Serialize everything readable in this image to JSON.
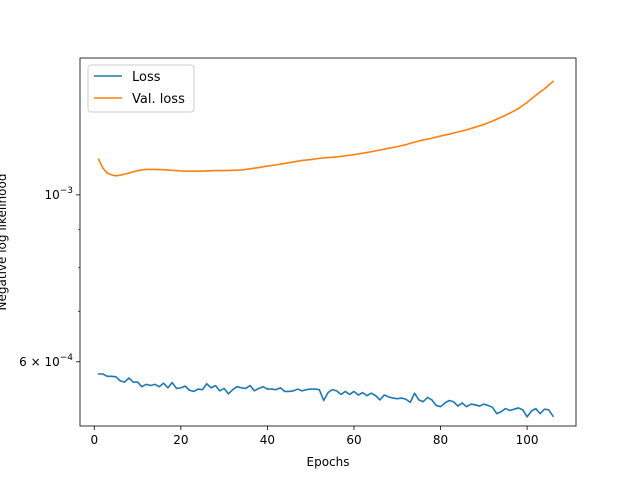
{
  "chart_data": {
    "type": "line",
    "title": "",
    "xlabel": "Epochs",
    "ylabel": "Negative log likelihood",
    "yscale": "log",
    "xlim": [
      -3.3,
      111.3
    ],
    "ylim": [
      0.000493,
      0.00152
    ],
    "grid": false,
    "legend_position": "top-left",
    "x_ticks": [
      0,
      20,
      40,
      60,
      80,
      100
    ],
    "x_tick_labels": [
      "0",
      "20",
      "40",
      "60",
      "80",
      "100"
    ],
    "y_ticks": [
      0.001,
      0.0006
    ],
    "y_tick_labels": [
      {
        "mantissa": "10",
        "sup": "−3"
      },
      {
        "mantissa": "6 × 10",
        "sup": "−4"
      }
    ],
    "y_minor_ticks": [
      0.0007,
      0.0008,
      0.0009
    ],
    "series": [
      {
        "name": "Loss",
        "color": "#1f77b4",
        "x": [
          1,
          2,
          3,
          4,
          5,
          6,
          7,
          8,
          9,
          10,
          11,
          12,
          13,
          14,
          15,
          16,
          17,
          18,
          19,
          20,
          21,
          22,
          23,
          24,
          25,
          26,
          27,
          28,
          29,
          30,
          31,
          32,
          33,
          34,
          35,
          36,
          37,
          38,
          39,
          40,
          41,
          42,
          43,
          44,
          45,
          46,
          47,
          48,
          49,
          50,
          51,
          52,
          53,
          54,
          55,
          56,
          57,
          58,
          59,
          60,
          61,
          62,
          63,
          64,
          65,
          66,
          67,
          68,
          69,
          70,
          71,
          72,
          73,
          74,
          75,
          76,
          77,
          78,
          79,
          80,
          81,
          82,
          83,
          84,
          85,
          86,
          87,
          88,
          89,
          90,
          91,
          92,
          93,
          94,
          95,
          96,
          97,
          98,
          99,
          100,
          101,
          102,
          103,
          104,
          105,
          106
        ],
        "values": [
          0.000578,
          0.000578,
          0.000574,
          0.000574,
          0.000573,
          0.000566,
          0.000564,
          0.000571,
          0.000564,
          0.000564,
          0.000556,
          0.00056,
          0.000558,
          0.00056,
          0.000556,
          0.000562,
          0.000554,
          0.000563,
          0.000553,
          0.000554,
          0.000557,
          0.00055,
          0.000548,
          0.000552,
          0.000551,
          0.000561,
          0.000554,
          0.000558,
          0.000549,
          0.000553,
          0.000544,
          0.000551,
          0.000556,
          0.000554,
          0.000553,
          0.000558,
          0.000549,
          0.000553,
          0.000556,
          0.000552,
          0.000552,
          0.000551,
          0.000554,
          0.000548,
          0.000548,
          0.000549,
          0.000552,
          0.000549,
          0.000551,
          0.000552,
          0.000552,
          0.000551,
          0.000533,
          0.000546,
          0.000551,
          0.000549,
          0.000543,
          0.000548,
          0.000543,
          0.000548,
          0.000542,
          0.000546,
          0.000541,
          0.000545,
          0.000541,
          0.000534,
          0.000542,
          0.000539,
          0.000537,
          0.000536,
          0.000537,
          0.000535,
          0.00053,
          0.000545,
          0.000534,
          0.000531,
          0.000538,
          0.000534,
          0.000525,
          0.000523,
          0.000529,
          0.000533,
          0.000531,
          0.000524,
          0.000529,
          0.000523,
          0.000527,
          0.000526,
          0.000524,
          0.000527,
          0.000525,
          0.000522,
          0.000512,
          0.000515,
          0.00052,
          0.000517,
          0.000519,
          0.000521,
          0.000518,
          0.000507,
          0.000516,
          0.00052,
          0.000512,
          0.000519,
          0.000518,
          0.000508
        ]
      },
      {
        "name": "Val. loss",
        "color": "#ff7f0e",
        "x": [
          1,
          2,
          3,
          4,
          5,
          6,
          8,
          10,
          12,
          14,
          16,
          18,
          20,
          22,
          24,
          26,
          28,
          30,
          32,
          34,
          36,
          38,
          40,
          42,
          44,
          46,
          48,
          50,
          52,
          54,
          56,
          58,
          60,
          62,
          64,
          66,
          68,
          70,
          72,
          74,
          76,
          78,
          80,
          82,
          84,
          86,
          88,
          90,
          92,
          94,
          96,
          98,
          100,
          102,
          104,
          106
        ],
        "values": [
          0.001115,
          0.001085,
          0.001069,
          0.001063,
          0.00106,
          0.001062,
          0.001069,
          0.001077,
          0.001081,
          0.001081,
          0.00108,
          0.001078,
          0.001076,
          0.001075,
          0.001075,
          0.001076,
          0.001077,
          0.001077,
          0.001078,
          0.001079,
          0.001083,
          0.001087,
          0.001092,
          0.001096,
          0.001101,
          0.001106,
          0.001111,
          0.001114,
          0.001118,
          0.001121,
          0.001123,
          0.001127,
          0.001131,
          0.001136,
          0.001141,
          0.001147,
          0.001153,
          0.001159,
          0.001166,
          0.001175,
          0.001183,
          0.001189,
          0.001197,
          0.001204,
          0.001212,
          0.00122,
          0.00123,
          0.00124,
          0.001253,
          0.001268,
          0.001284,
          0.001302,
          0.001327,
          0.001356,
          0.001383,
          0.001415
        ]
      }
    ]
  }
}
